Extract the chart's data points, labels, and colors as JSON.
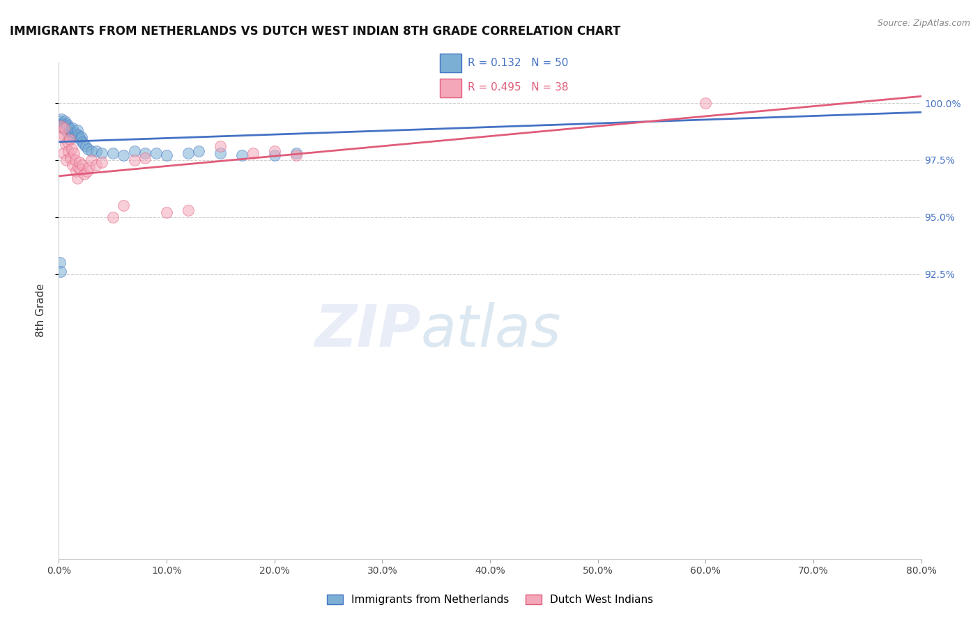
{
  "title": "IMMIGRANTS FROM NETHERLANDS VS DUTCH WEST INDIAN 8TH GRADE CORRELATION CHART",
  "source": "Source: ZipAtlas.com",
  "ylabel": "8th Grade",
  "xlim": [
    0.0,
    80.0
  ],
  "ylim": [
    80.0,
    101.8
  ],
  "yticks": [
    92.5,
    95.0,
    97.5,
    100.0
  ],
  "xticks": [
    0.0,
    10.0,
    20.0,
    30.0,
    40.0,
    50.0,
    60.0,
    70.0,
    80.0
  ],
  "xtick_labels": [
    "0.0%",
    "10.0%",
    "20.0%",
    "30.0%",
    "40.0%",
    "50.0%",
    "60.0%",
    "70.0%",
    "80.0%"
  ],
  "ytick_labels": [
    "92.5%",
    "95.0%",
    "97.5%",
    "100.0%"
  ],
  "blue_R": 0.132,
  "blue_N": 50,
  "pink_R": 0.495,
  "pink_N": 38,
  "blue_color": "#7BAFD4",
  "pink_color": "#F4A7B9",
  "blue_line_color": "#4472C4",
  "pink_line_color": "#E05C7A",
  "legend_label_blue": "Immigrants from Netherlands",
  "legend_label_pink": "Dutch West Indians",
  "blue_line_x0": 0.0,
  "blue_line_y0": 98.3,
  "blue_line_x1": 80.0,
  "blue_line_y1": 99.6,
  "pink_line_x0": 0.0,
  "pink_line_y0": 96.8,
  "pink_line_x1": 80.0,
  "pink_line_y1": 100.3
}
